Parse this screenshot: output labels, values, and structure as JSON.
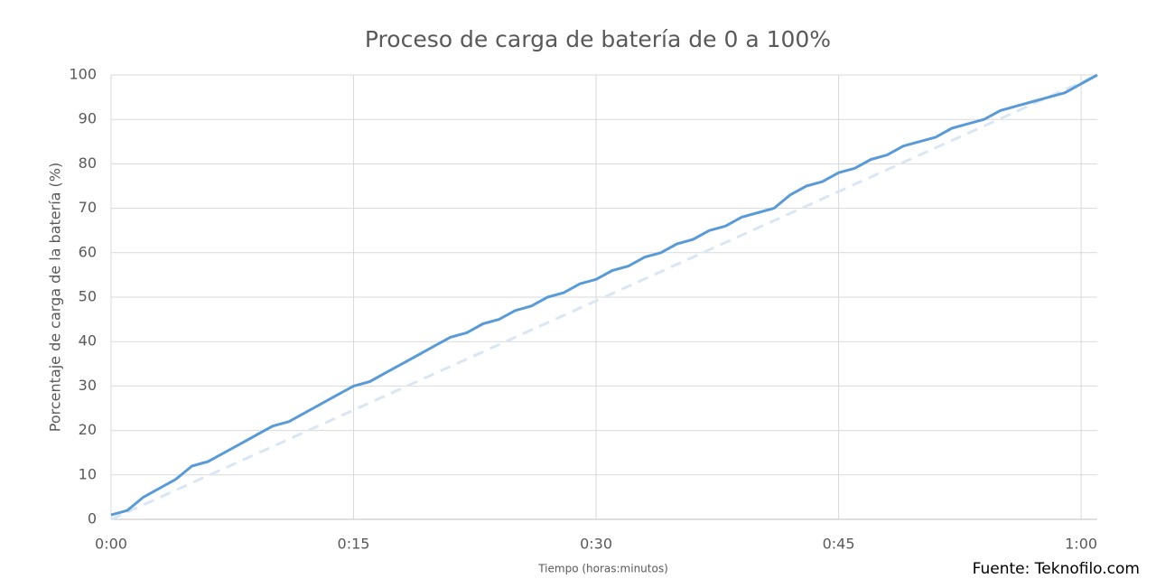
{
  "chart_data": {
    "type": "line",
    "title": "Proceso de carga de batería de 0 a 100%",
    "x_label": "Tiempo (horas:minutos)",
    "y_label": "Porcentaje de carga de la batería (%)",
    "source": "Fuente: Teknofilo.com",
    "xlim": [
      0,
      61
    ],
    "xticks": [
      {
        "value": 0,
        "label": "0:00"
      },
      {
        "value": 15,
        "label": "0:15"
      },
      {
        "value": 30,
        "label": "0:30"
      },
      {
        "value": 45,
        "label": "0:45"
      },
      {
        "value": 60,
        "label": "1:00"
      }
    ],
    "ylim": [
      0,
      100
    ],
    "yticks": [
      0,
      10,
      20,
      30,
      40,
      50,
      60,
      70,
      80,
      90,
      100
    ],
    "grid": true,
    "series": [
      {
        "color": "#5b9bd5",
        "dash": false,
        "x": [
          0,
          1,
          2,
          3,
          4,
          5,
          6,
          7,
          8,
          9,
          10,
          11,
          12,
          13,
          14,
          15,
          16,
          17,
          18,
          19,
          20,
          21,
          22,
          23,
          24,
          25,
          26,
          27,
          28,
          29,
          30,
          31,
          32,
          33,
          34,
          35,
          36,
          37,
          38,
          39,
          40,
          41,
          42,
          43,
          44,
          45,
          46,
          47,
          48,
          49,
          50,
          51,
          52,
          53,
          54,
          55,
          56,
          57,
          58,
          59,
          60,
          61
        ],
        "values": [
          1,
          2,
          5,
          7,
          9,
          12,
          13,
          15,
          17,
          19,
          21,
          22,
          24,
          26,
          28,
          30,
          31,
          33,
          35,
          37,
          39,
          41,
          42,
          44,
          45,
          47,
          48,
          50,
          51,
          53,
          54,
          56,
          57,
          59,
          60,
          62,
          63,
          65,
          66,
          68,
          69,
          70,
          73,
          75,
          76,
          78,
          79,
          81,
          82,
          84,
          85,
          86,
          88,
          89,
          90,
          92,
          93,
          94,
          95,
          96,
          98,
          100
        ]
      },
      {
        "color": "#dae6f3",
        "dash": true,
        "x": [
          0,
          61
        ],
        "values": [
          0,
          100
        ]
      }
    ]
  }
}
